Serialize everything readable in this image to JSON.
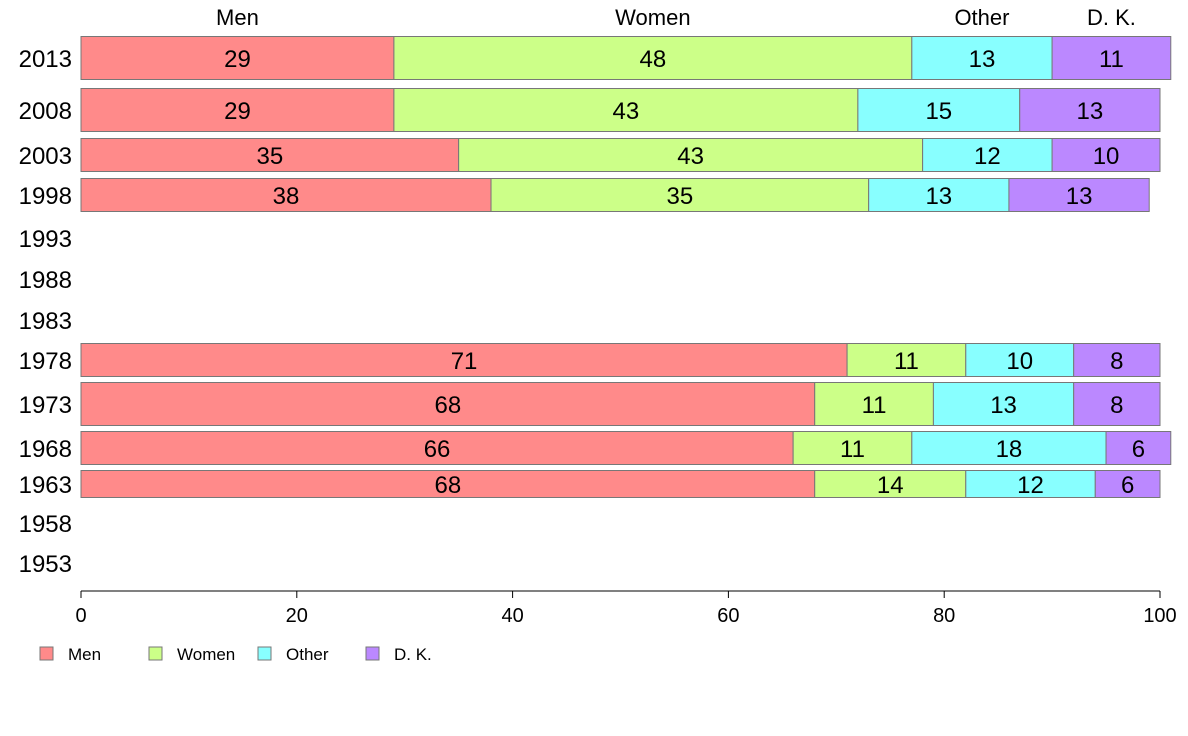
{
  "chart_data": {
    "type": "bar",
    "orientation": "horizontal",
    "stacked": true,
    "categories": [
      "2013",
      "2008",
      "2003",
      "1998",
      "1993",
      "1988",
      "1983",
      "1978",
      "1973",
      "1968",
      "1963",
      "1958",
      "1953"
    ],
    "series": [
      {
        "name": "Men",
        "color": "#ff8a8a",
        "values": [
          29,
          29,
          35,
          38,
          null,
          null,
          null,
          71,
          68,
          66,
          68,
          null,
          null
        ]
      },
      {
        "name": "Women",
        "color": "#ccff88",
        "values": [
          48,
          43,
          43,
          35,
          null,
          null,
          null,
          11,
          11,
          11,
          14,
          null,
          null
        ]
      },
      {
        "name": "Other",
        "color": "#88ffff",
        "values": [
          13,
          15,
          12,
          13,
          null,
          null,
          null,
          10,
          13,
          18,
          12,
          null,
          null
        ]
      },
      {
        "name": "D. K.",
        "color": "#bb88ff",
        "values": [
          11,
          13,
          10,
          13,
          null,
          null,
          null,
          8,
          8,
          6,
          6,
          null,
          null
        ]
      }
    ],
    "column_headers": [
      "Men",
      "Women",
      "Other",
      "D. K."
    ],
    "xlim": [
      0,
      100
    ],
    "xticks": [
      0,
      20,
      40,
      60,
      80,
      100
    ],
    "grid": false,
    "legend_position": "bottom-left"
  }
}
